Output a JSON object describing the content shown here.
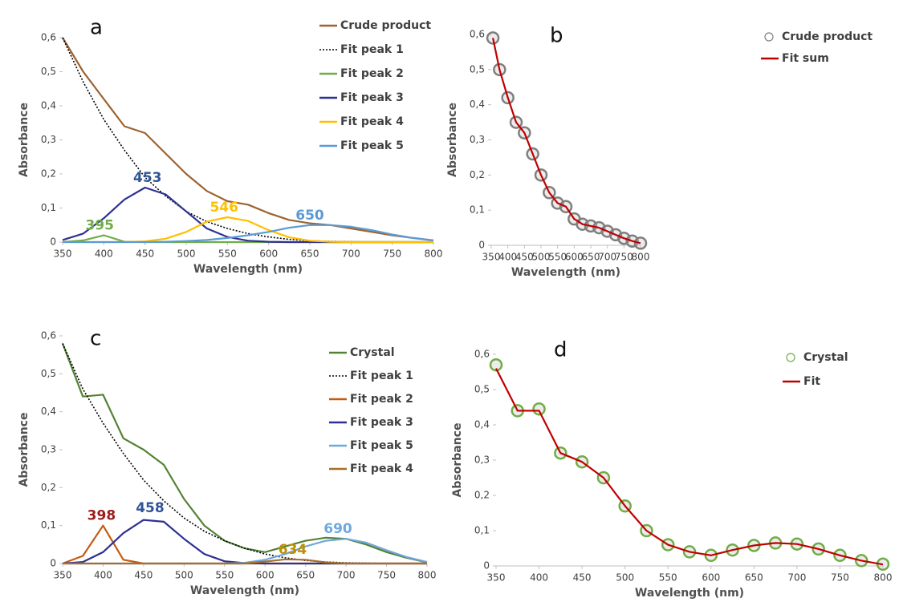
{
  "chart_data": [
    {
      "type": "line",
      "panel_label": "a",
      "x_label": "Wavelength (nm)",
      "y_label": "Absorbance",
      "x": [
        350,
        375,
        400,
        425,
        450,
        475,
        500,
        525,
        550,
        575,
        600,
        625,
        650,
        675,
        700,
        725,
        750,
        775,
        800
      ],
      "xlim": [
        350,
        800
      ],
      "xticks": [
        350,
        400,
        450,
        500,
        550,
        600,
        650,
        700,
        750,
        800
      ],
      "ylim": [
        0,
        0.6
      ],
      "yticks": [
        {
          "value": 0,
          "label": "0"
        },
        {
          "value": 0.1,
          "label": "0,1"
        },
        {
          "value": 0.2,
          "label": "0,2"
        },
        {
          "value": 0.3,
          "label": "0,3"
        },
        {
          "value": 0.4,
          "label": "0,4"
        },
        {
          "value": 0.5,
          "label": "0,5"
        },
        {
          "value": 0.6,
          "label": "0,6"
        }
      ],
      "series": [
        {
          "name": "Crude product",
          "color": "#9c6230",
          "values": [
            0.6,
            0.5,
            0.42,
            0.34,
            0.32,
            0.26,
            0.2,
            0.15,
            0.12,
            0.11,
            0.085,
            0.065,
            0.055,
            0.05,
            0.04,
            0.03,
            0.02,
            0.012,
            0.005
          ]
        },
        {
          "name": "Fit peak 1",
          "color": "#000000",
          "dash": "dotted",
          "values": [
            0.6,
            0.47,
            0.36,
            0.27,
            0.19,
            0.135,
            0.09,
            0.06,
            0.04,
            0.025,
            0.015,
            0.008,
            0.004,
            0.002,
            0.001,
            0,
            0,
            0,
            0
          ]
        },
        {
          "name": "Fit peak 2",
          "color": "#70ad47",
          "values": [
            0,
            0.005,
            0.02,
            0.001,
            0,
            0,
            0,
            0,
            0,
            0,
            0,
            0,
            0,
            0,
            0,
            0,
            0,
            0,
            0
          ]
        },
        {
          "name": "Fit peak 3",
          "color": "#2e3192",
          "values": [
            0.006,
            0.025,
            0.07,
            0.125,
            0.16,
            0.14,
            0.09,
            0.04,
            0.015,
            0.004,
            0.001,
            0,
            0,
            0,
            0,
            0,
            0,
            0,
            0
          ]
        },
        {
          "name": "Fit peak 4",
          "color": "#ffc000",
          "values": [
            0,
            0,
            0,
            0,
            0.002,
            0.01,
            0.03,
            0.06,
            0.073,
            0.062,
            0.035,
            0.014,
            0.004,
            0.001,
            0,
            0,
            0,
            0,
            0
          ]
        },
        {
          "name": "Fit peak 5",
          "color": "#5b9bd5",
          "values": [
            0,
            0,
            0,
            0,
            0,
            0.001,
            0.003,
            0.006,
            0.012,
            0.02,
            0.03,
            0.042,
            0.05,
            0.05,
            0.045,
            0.035,
            0.022,
            0.012,
            0.005
          ]
        }
      ],
      "annotations": [
        {
          "text": "453",
          "x": 453,
          "y": 0.16,
          "color": "#2f5597"
        },
        {
          "text": "395",
          "x": 395,
          "y": 0.02,
          "color": "#70ad47"
        },
        {
          "text": "546",
          "x": 546,
          "y": 0.073,
          "color": "#ffc000"
        },
        {
          "text": "650",
          "x": 650,
          "y": 0.05,
          "color": "#5b9bd5"
        }
      ]
    },
    {
      "type": "line",
      "panel_label": "b",
      "x_label": "Wavelength (nm)",
      "y_label": "Absorbance",
      "x": [
        355,
        375,
        400,
        425,
        450,
        475,
        500,
        525,
        550,
        575,
        600,
        625,
        650,
        675,
        700,
        725,
        750,
        775,
        800
      ],
      "xlim": [
        350,
        800
      ],
      "xticks": [
        350,
        400,
        450,
        500,
        550,
        600,
        650,
        700,
        750,
        800
      ],
      "ylim": [
        0,
        0.6
      ],
      "yticks": [
        {
          "value": 0,
          "label": "0"
        },
        {
          "value": 0.1,
          "label": "0,1"
        },
        {
          "value": 0.2,
          "label": "0,2"
        },
        {
          "value": 0.3,
          "label": "0,3"
        },
        {
          "value": 0.4,
          "label": "0,4"
        },
        {
          "value": 0.5,
          "label": "0,5"
        },
        {
          "value": 0.6,
          "label": "0,6"
        }
      ],
      "series": [
        {
          "name": "Crude product",
          "color": "#7f7f7f",
          "marker": "circle",
          "values": [
            0.59,
            0.5,
            0.42,
            0.35,
            0.32,
            0.26,
            0.2,
            0.15,
            0.12,
            0.11,
            0.075,
            0.06,
            0.055,
            0.05,
            0.04,
            0.03,
            0.02,
            0.012,
            0.006
          ]
        },
        {
          "name": "Fit sum",
          "color": "#c00000",
          "values": [
            0.59,
            0.5,
            0.42,
            0.35,
            0.32,
            0.26,
            0.2,
            0.15,
            0.12,
            0.11,
            0.075,
            0.06,
            0.055,
            0.05,
            0.04,
            0.03,
            0.02,
            0.012,
            0.006
          ]
        }
      ]
    },
    {
      "type": "line",
      "panel_label": "c",
      "x_label": "Wavelength (nm)",
      "y_label": "Absorbance",
      "x": [
        350,
        375,
        400,
        425,
        450,
        475,
        500,
        525,
        550,
        575,
        600,
        625,
        650,
        675,
        700,
        725,
        750,
        775,
        800
      ],
      "xlim": [
        350,
        800
      ],
      "xticks": [
        350,
        400,
        450,
        500,
        550,
        600,
        650,
        700,
        750,
        800
      ],
      "ylim": [
        0,
        0.6
      ],
      "yticks": [
        {
          "value": 0,
          "label": "0"
        },
        {
          "value": 0.1,
          "label": "0,1"
        },
        {
          "value": 0.2,
          "label": "0,2"
        },
        {
          "value": 0.3,
          "label": "0,3"
        },
        {
          "value": 0.4,
          "label": "0,4"
        },
        {
          "value": 0.5,
          "label": "0,5"
        },
        {
          "value": 0.6,
          "label": "0,6"
        }
      ],
      "series": [
        {
          "name": "Crystal",
          "color": "#548235",
          "values": [
            0.58,
            0.44,
            0.445,
            0.33,
            0.3,
            0.26,
            0.17,
            0.1,
            0.06,
            0.04,
            0.03,
            0.045,
            0.06,
            0.068,
            0.065,
            0.05,
            0.03,
            0.015,
            0.003
          ]
        },
        {
          "name": "Fit peak 1",
          "color": "#000000",
          "dash": "dotted",
          "values": [
            0.58,
            0.46,
            0.37,
            0.29,
            0.22,
            0.165,
            0.12,
            0.085,
            0.06,
            0.04,
            0.025,
            0.015,
            0.008,
            0.004,
            0.002,
            0.001,
            0,
            0,
            0
          ]
        },
        {
          "name": "Fit peak 2",
          "color": "#c55a11",
          "values": [
            0,
            0.02,
            0.1,
            0.01,
            0,
            0,
            0,
            0,
            0,
            0,
            0,
            0,
            0,
            0,
            0,
            0,
            0,
            0,
            0
          ]
        },
        {
          "name": "Fit peak 3",
          "color": "#2e3192",
          "values": [
            0,
            0.004,
            0.03,
            0.08,
            0.115,
            0.11,
            0.065,
            0.025,
            0.006,
            0.001,
            0,
            0,
            0,
            0,
            0,
            0,
            0,
            0,
            0
          ]
        },
        {
          "name": "Fit peak 5",
          "color": "#6fa8dc",
          "values": [
            0,
            0,
            0,
            0,
            0,
            0,
            0,
            0,
            0,
            0.002,
            0.01,
            0.025,
            0.045,
            0.06,
            0.065,
            0.055,
            0.035,
            0.017,
            0.004
          ]
        },
        {
          "name": "Fit peak 4",
          "color": "#a5702a",
          "values": [
            0,
            0,
            0,
            0,
            0,
            0,
            0,
            0,
            0,
            0,
            0.005,
            0.011,
            0.01,
            0.003,
            0,
            0,
            0,
            0,
            0
          ]
        }
      ],
      "annotations": [
        {
          "text": "398",
          "x": 398,
          "y": 0.1,
          "color": "#9c1c1c"
        },
        {
          "text": "458",
          "x": 458,
          "y": 0.12,
          "color": "#2f5597"
        },
        {
          "text": "634",
          "x": 634,
          "y": 0.011,
          "color": "#bf8f00"
        },
        {
          "text": "690",
          "x": 690,
          "y": 0.065,
          "color": "#6fa8dc"
        }
      ]
    },
    {
      "type": "line",
      "panel_label": "d",
      "x_label": "Wavelength (nm)",
      "y_label": "Absorbance",
      "x": [
        350,
        375,
        400,
        425,
        450,
        475,
        500,
        525,
        550,
        575,
        600,
        625,
        650,
        675,
        700,
        725,
        750,
        775,
        800
      ],
      "xlim": [
        350,
        800
      ],
      "xticks": [
        350,
        400,
        450,
        500,
        550,
        600,
        650,
        700,
        750,
        800
      ],
      "ylim": [
        0,
        0.6
      ],
      "yticks": [
        {
          "value": 0,
          "label": "0"
        },
        {
          "value": 0.1,
          "label": "0,1"
        },
        {
          "value": 0.2,
          "label": "0,2"
        },
        {
          "value": 0.3,
          "label": "0,3"
        },
        {
          "value": 0.4,
          "label": "0,4"
        },
        {
          "value": 0.5,
          "label": "0,5"
        },
        {
          "value": 0.6,
          "label": "0,6"
        }
      ],
      "series": [
        {
          "name": "Crystal",
          "color": "#70ad47",
          "marker": "circle",
          "values": [
            0.57,
            0.44,
            0.445,
            0.32,
            0.295,
            0.25,
            0.17,
            0.1,
            0.06,
            0.04,
            0.03,
            0.045,
            0.058,
            0.065,
            0.062,
            0.048,
            0.03,
            0.015,
            0.005
          ]
        },
        {
          "name": "Fit",
          "color": "#c00000",
          "values": [
            0.56,
            0.44,
            0.44,
            0.32,
            0.295,
            0.25,
            0.17,
            0.1,
            0.06,
            0.04,
            0.03,
            0.045,
            0.058,
            0.065,
            0.062,
            0.048,
            0.03,
            0.015,
            0.004
          ]
        }
      ]
    }
  ]
}
